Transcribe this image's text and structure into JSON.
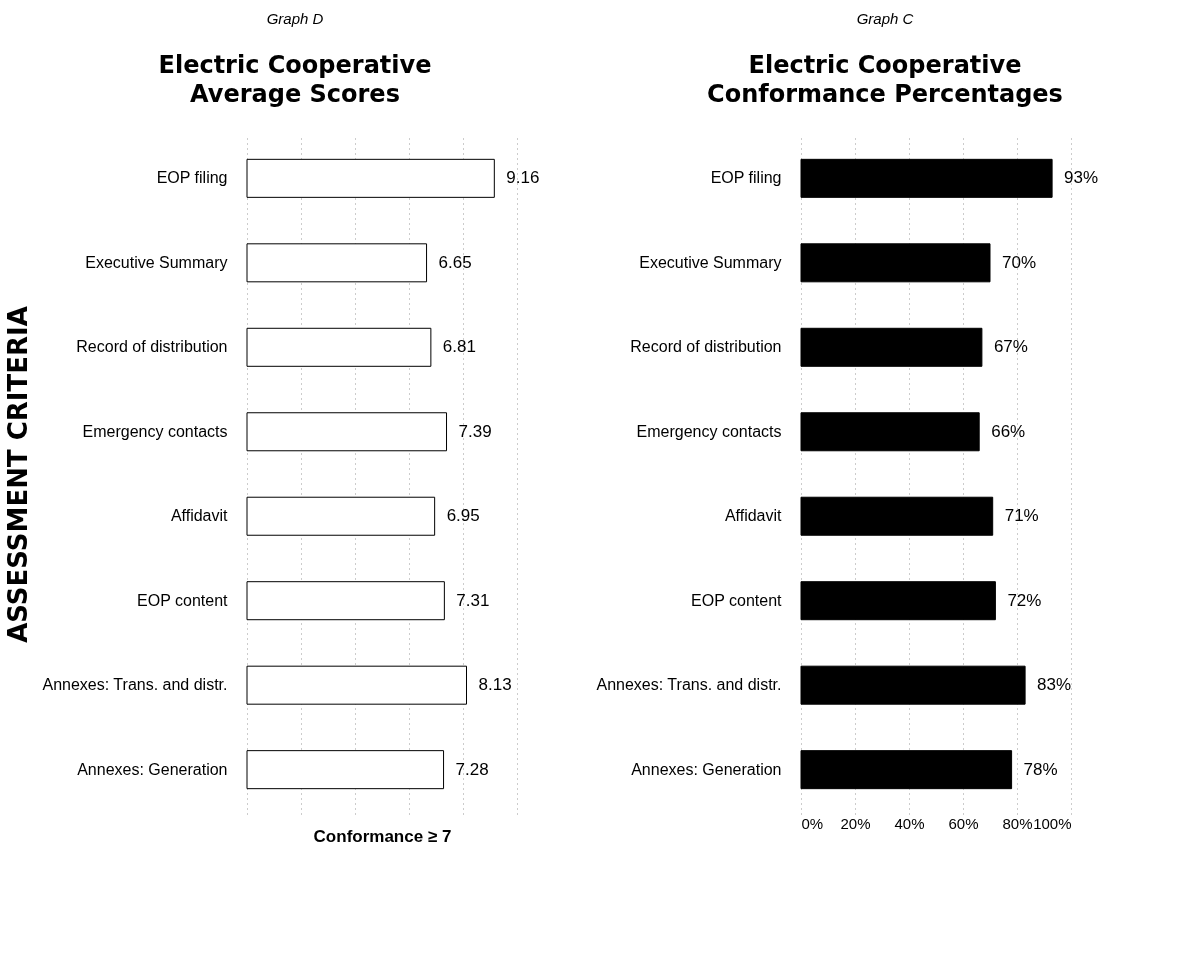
{
  "chart_data": [
    {
      "type": "bar",
      "orientation": "horizontal",
      "title": "Electric Cooperative Average Scores",
      "annotations": [
        "Graph D"
      ],
      "ylabel": "ASSESSMENT CRITERIA",
      "xlabel": "Conformance ≥ 7",
      "categories": [
        "EOP filing",
        "Executive Summary",
        "Record of distribution",
        "Emergency contacts",
        "Affidavit",
        "EOP content",
        "Annexes: Trans. and distr.",
        "Annexes: Generation"
      ],
      "values": [
        9.16,
        6.65,
        6.81,
        7.39,
        6.95,
        7.31,
        8.13,
        7.28
      ],
      "color": "#ffffff",
      "data_labels": true,
      "xlim": [
        0,
        10
      ],
      "xticks": [
        {
          "value": 0,
          "label": null
        },
        {
          "value": 2,
          "label": null
        },
        {
          "value": 4,
          "label": null
        },
        {
          "value": 6,
          "label": null
        },
        {
          "value": 8,
          "label": null
        },
        {
          "value": 10,
          "label": null
        }
      ],
      "tick_labels": "y",
      "grid": "x"
    },
    {
      "type": "bar",
      "orientation": "horizontal",
      "title": "Electric Cooperative Conformance Percentages",
      "annotations": [
        "Graph C"
      ],
      "categories": [
        "EOP filing",
        "Executive Summary",
        "Record of distribution",
        "Emergency contacts",
        "Affidavit",
        "EOP content",
        "Annexes: Trans. and distr.",
        "Annexes: Generation"
      ],
      "values": [
        93,
        70,
        67,
        66,
        71,
        72,
        83,
        78
      ],
      "color": "#000000",
      "value_labels": [
        "93%",
        "70%",
        "67%",
        "66%",
        "71%",
        "72%",
        "83%",
        "78%"
      ],
      "xlim": [
        0,
        100
      ],
      "xticks": [
        {
          "value": 0,
          "label": "0%"
        },
        {
          "value": 20,
          "label": "20%"
        },
        {
          "value": 40,
          "label": "40%"
        },
        {
          "value": 60,
          "label": "60%"
        },
        {
          "value": 80,
          "label": "80%"
        },
        {
          "value": 100,
          "label": "100%"
        }
      ],
      "grid": "x"
    }
  ]
}
